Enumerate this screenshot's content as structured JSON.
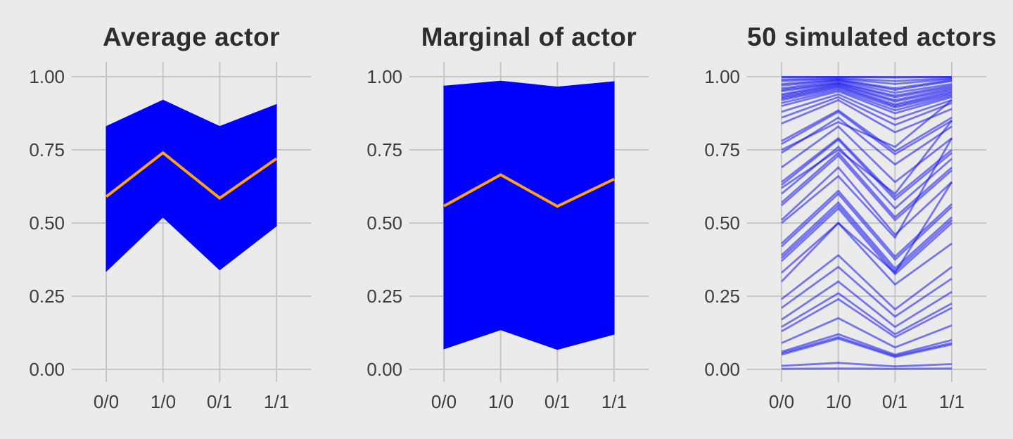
{
  "style": {
    "background": "#ebebeb",
    "grid_color": "#c6c6c6",
    "band_color": "#0000ff",
    "mean_line_color": "#ffa214",
    "sim_line_color": "rgba(20,20,240,0.55)",
    "title_color": "#2d2d2d",
    "tick_label_color": "#3c3c3c"
  },
  "axes": {
    "x_ticks": [
      "0/0",
      "1/0",
      "0/1",
      "1/1"
    ],
    "y_ticks": [
      "1.00",
      "0.75",
      "0.50",
      "0.25",
      "0.00"
    ],
    "y_tick_values": [
      1.0,
      0.75,
      0.5,
      0.25,
      0.0
    ],
    "ylim": [
      0,
      1
    ],
    "grid": "on"
  },
  "chart_data": [
    {
      "type": "area",
      "title": "Average actor",
      "x": [
        "0/0",
        "1/0",
        "0/1",
        "1/1"
      ],
      "mean": [
        0.59,
        0.74,
        0.585,
        0.72
      ],
      "band_upper": [
        0.83,
        0.92,
        0.83,
        0.905
      ],
      "band_lower": [
        0.335,
        0.52,
        0.34,
        0.49
      ],
      "ylim": [
        0,
        1
      ]
    },
    {
      "type": "area",
      "title": "Marginal of actor",
      "x": [
        "0/0",
        "1/0",
        "0/1",
        "1/1"
      ],
      "mean": [
        0.558,
        0.665,
        0.557,
        0.65
      ],
      "band_upper": [
        0.968,
        0.985,
        0.965,
        0.983
      ],
      "band_lower": [
        0.07,
        0.135,
        0.068,
        0.12
      ],
      "ylim": [
        0,
        1
      ]
    },
    {
      "type": "line",
      "title": "50 simulated actors",
      "x": [
        "0/0",
        "1/0",
        "0/1",
        "1/1"
      ],
      "series": [
        [
          0.999,
          0.999,
          0.999,
          0.999
        ],
        [
          0.998,
          0.999,
          0.997,
          0.999
        ],
        [
          0.99,
          0.995,
          0.985,
          0.995
        ],
        [
          0.985,
          0.993,
          0.975,
          0.992
        ],
        [
          0.975,
          0.99,
          0.96,
          0.988
        ],
        [
          0.97,
          0.988,
          0.955,
          0.985
        ],
        [
          0.96,
          0.985,
          0.945,
          0.975
        ],
        [
          0.955,
          0.98,
          0.935,
          0.97
        ],
        [
          0.95,
          0.978,
          0.93,
          0.965
        ],
        [
          0.94,
          0.975,
          0.92,
          0.96
        ],
        [
          0.935,
          0.972,
          0.915,
          0.955
        ],
        [
          0.93,
          0.968,
          0.905,
          0.95
        ],
        [
          0.925,
          0.965,
          0.9,
          0.945
        ],
        [
          0.92,
          0.96,
          0.895,
          0.94
        ],
        [
          0.91,
          0.955,
          0.885,
          0.935
        ],
        [
          0.9,
          0.95,
          0.875,
          0.93
        ],
        [
          0.88,
          0.94,
          0.855,
          0.92
        ],
        [
          0.86,
          0.93,
          0.835,
          0.91
        ],
        [
          0.84,
          0.92,
          0.81,
          0.89
        ],
        [
          0.78,
          0.885,
          0.745,
          0.86
        ],
        [
          0.77,
          0.88,
          0.735,
          0.85
        ],
        [
          0.74,
          0.86,
          0.7,
          0.83
        ],
        [
          0.69,
          0.83,
          0.64,
          0.79
        ],
        [
          0.64,
          0.79,
          0.59,
          0.75
        ],
        [
          0.63,
          0.785,
          0.58,
          0.74
        ],
        [
          0.6,
          0.76,
          0.55,
          0.72
        ],
        [
          0.57,
          0.74,
          0.52,
          0.69
        ],
        [
          0.56,
          0.73,
          0.51,
          0.68
        ],
        [
          0.51,
          0.69,
          0.46,
          0.64
        ],
        [
          0.75,
          0.845,
          0.76,
          0.92
        ],
        [
          0.62,
          0.75,
          0.6,
          0.85
        ],
        [
          0.5,
          0.66,
          0.45,
          0.79
        ],
        [
          0.43,
          0.61,
          0.385,
          0.565
        ],
        [
          0.42,
          0.6,
          0.375,
          0.555
        ],
        [
          0.39,
          0.57,
          0.345,
          0.52
        ],
        [
          0.38,
          0.56,
          0.335,
          0.51
        ],
        [
          0.37,
          0.55,
          0.325,
          0.5
        ],
        [
          0.3,
          0.5,
          0.33,
          0.64
        ],
        [
          0.33,
          0.5,
          0.29,
          0.43
        ],
        [
          0.24,
          0.39,
          0.205,
          0.35
        ],
        [
          0.21,
          0.35,
          0.18,
          0.31
        ],
        [
          0.17,
          0.3,
          0.145,
          0.265
        ],
        [
          0.145,
          0.26,
          0.12,
          0.225
        ],
        [
          0.13,
          0.24,
          0.11,
          0.21
        ],
        [
          0.09,
          0.175,
          0.075,
          0.15
        ],
        [
          0.06,
          0.12,
          0.05,
          0.1
        ],
        [
          0.055,
          0.11,
          0.046,
          0.09
        ],
        [
          0.05,
          0.105,
          0.042,
          0.085
        ],
        [
          0.012,
          0.022,
          0.01,
          0.018
        ],
        [
          0.002,
          0.003,
          0.002,
          0.003
        ]
      ],
      "ylim": [
        0,
        1
      ]
    }
  ]
}
